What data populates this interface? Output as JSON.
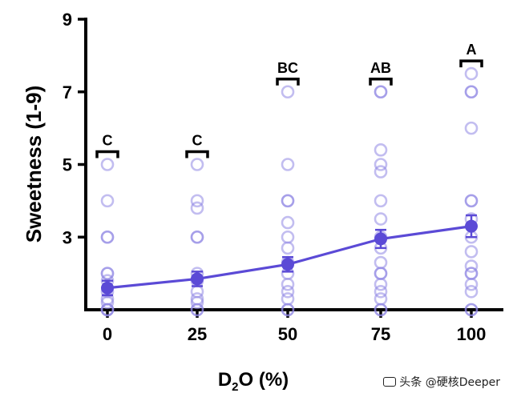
{
  "chart_data": {
    "type": "scatter",
    "ylabel": "Sweetness (1-9)",
    "xlabel_parts": [
      "D",
      "2",
      "O (%)"
    ],
    "ylim": [
      1,
      9
    ],
    "yticks": [
      "3",
      "5",
      "7",
      "9"
    ],
    "categories": [
      "0",
      "25",
      "50",
      "75",
      "100"
    ],
    "means": [
      1.6,
      1.85,
      2.25,
      2.95,
      3.3
    ],
    "sem": [
      0.2,
      0.2,
      0.2,
      0.25,
      0.3
    ],
    "significance_letters": [
      "C",
      "C",
      "BC",
      "AB",
      "A"
    ],
    "individual_ratings": [
      [
        5,
        4,
        3,
        3,
        2,
        2,
        1.8,
        1.5,
        1.3,
        1.2,
        1.0,
        1.0,
        1.0
      ],
      [
        5,
        4,
        3.8,
        3,
        3,
        2,
        1.8,
        1.5,
        1.3,
        1.2,
        1.0,
        1.0
      ],
      [
        7,
        5,
        4,
        4,
        3.4,
        3,
        2.7,
        2.3,
        2,
        1.7,
        1.5,
        1.3,
        1.0,
        1.0
      ],
      [
        7,
        7,
        5.4,
        5,
        4.8,
        4,
        3.5,
        3,
        2.7,
        2.3,
        2,
        2,
        1.7,
        1.5,
        1.3,
        1.0,
        1.0
      ],
      [
        7.5,
        7,
        7,
        6,
        4,
        4,
        3.5,
        3,
        2.6,
        2.2,
        2,
        2,
        1.7,
        1.5,
        1.0,
        1.0
      ]
    ],
    "colors": {
      "line": "#5b4ad6",
      "mean_marker": "#5b4ad6",
      "individual": "#8f86e4",
      "axis": "#000000"
    },
    "grid": false,
    "legend": "none"
  },
  "watermark": "头条 @硬核Deeper"
}
